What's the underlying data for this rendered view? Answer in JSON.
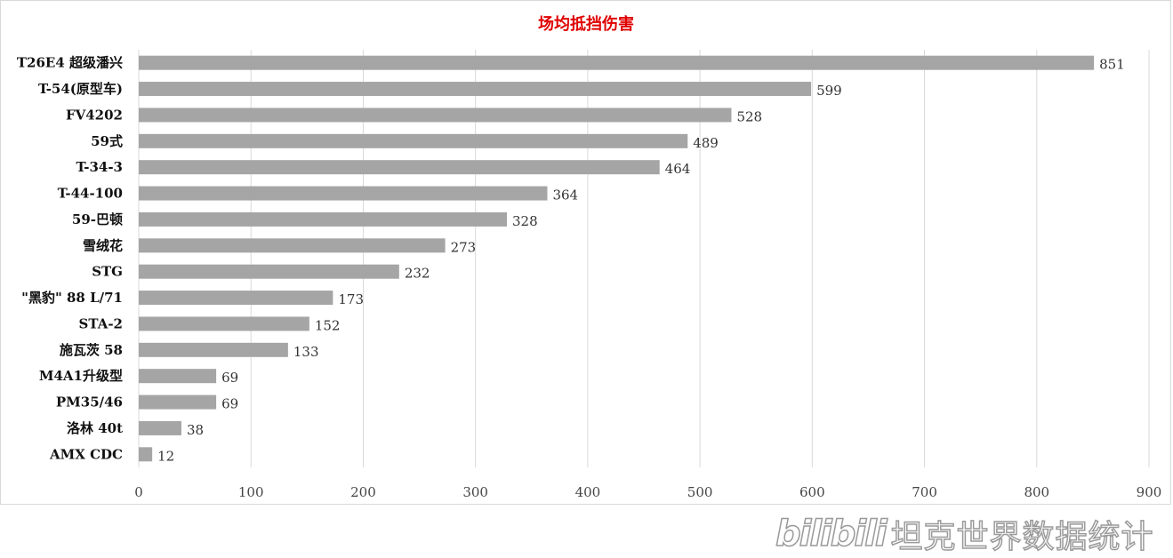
{
  "chart_data": {
    "type": "bar",
    "orientation": "horizontal",
    "title": "场均抵挡伤害",
    "categories": [
      "T26E4 超级潘兴",
      "T-54(原型车)",
      "FV4202",
      "59式",
      "T-34-3",
      "T-44-100",
      "59-巴顿",
      "雪绒花",
      "STG",
      "\"黑豹\" 88 L/71",
      "STA-2",
      "施瓦茨 58",
      "M4A1升级型",
      "PM35/46",
      "洛林 40t",
      "AMX CDC"
    ],
    "values": [
      851,
      599,
      528,
      489,
      464,
      364,
      328,
      273,
      232,
      173,
      152,
      133,
      69,
      69,
      38,
      12
    ],
    "xlim": [
      0,
      900
    ],
    "xticks": [
      0,
      100,
      200,
      300,
      400,
      500,
      600,
      700,
      800,
      900
    ],
    "grid": "vertical",
    "legend": "none",
    "colors": {
      "bar": "#a5a5a5",
      "title": "#e00000"
    }
  },
  "watermark": {
    "logo": "bilibili",
    "text": "坦克世界数据统计"
  }
}
